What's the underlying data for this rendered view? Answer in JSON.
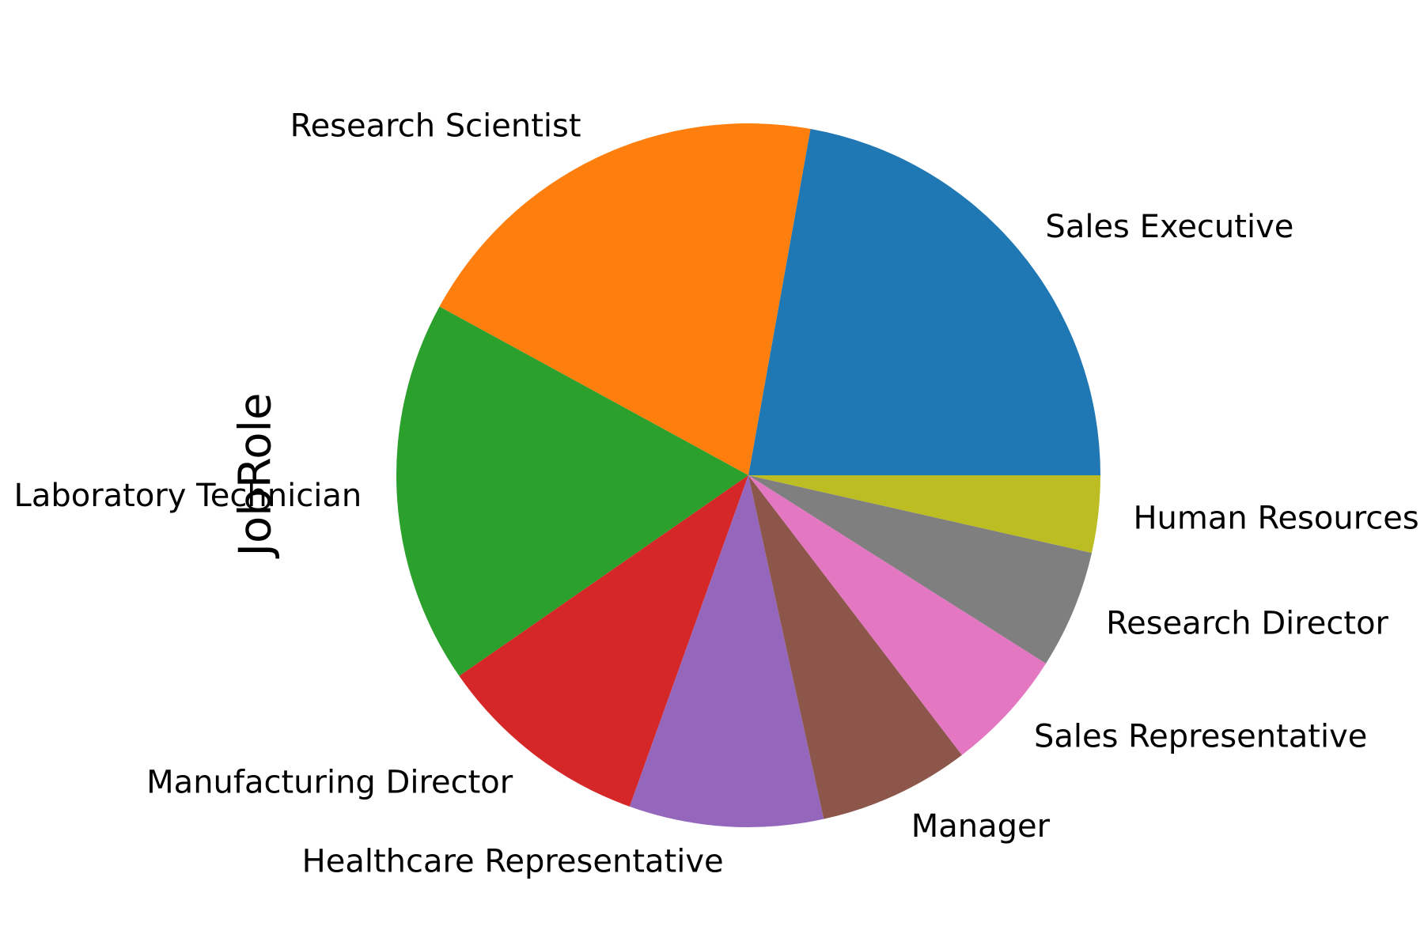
{
  "chart_data": {
    "type": "pie",
    "ylabel": "JobRole",
    "start_angle_deg": 0,
    "direction": "counterclockwise",
    "slices": [
      {
        "label": "Sales Executive",
        "value": 326,
        "color": "#1f77b4"
      },
      {
        "label": "Research Scientist",
        "value": 292,
        "color": "#ff7f0e"
      },
      {
        "label": "Laboratory Technician",
        "value": 259,
        "color": "#2ca02c"
      },
      {
        "label": "Manufacturing Director",
        "value": 145,
        "color": "#d62728"
      },
      {
        "label": "Healthcare Representative",
        "value": 131,
        "color": "#9467bd"
      },
      {
        "label": "Manager",
        "value": 102,
        "color": "#8c564b"
      },
      {
        "label": "Sales Representative",
        "value": 83,
        "color": "#e377c2"
      },
      {
        "label": "Research Director",
        "value": 80,
        "color": "#7f7f7f"
      },
      {
        "label": "Human Resources",
        "value": 52,
        "color": "#bcbd22"
      }
    ]
  }
}
